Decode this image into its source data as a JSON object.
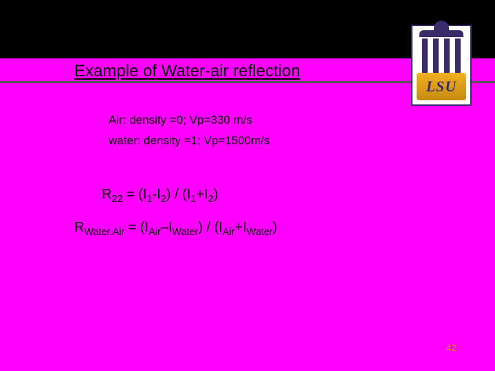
{
  "slide": {
    "background_color": "#ff00ff",
    "top_bar_color": "#000000",
    "rule_color": "#555555",
    "title": "Example of Water-air reflection",
    "title_fontsize": 24,
    "line1": "Air: density =0; Vp=330 m/s",
    "line2": "water: density =1; Vp=1500m/s",
    "body_fontsize": 17,
    "formula1": {
      "R": "R",
      "Rsub": "22",
      "eq": " = (I",
      "s1": "1",
      "minus": "-I",
      "s2": "2",
      "mid": ") / (I",
      "s3": "1",
      "plus": "+I",
      "s4": "2",
      "end": ")"
    },
    "formula2": {
      "R": "R",
      "Rsub": "Water.Air",
      "eq": " = (I",
      "s1": "Air",
      "minus": "–I",
      "s2": "Water",
      "mid": ") / (I",
      "s3": "Air",
      "plus": "+I",
      "s4": "Water",
      "end": ")"
    },
    "formula_fontsize": 20,
    "page_number": "42",
    "page_number_color": "#d98a00"
  },
  "logo": {
    "text": "LSU",
    "bg": "#ffffff",
    "frame": "#3a2a6a",
    "gold_top": "#f0b020",
    "gold_bottom": "#c88a10",
    "text_color": "#3a2a6a"
  }
}
